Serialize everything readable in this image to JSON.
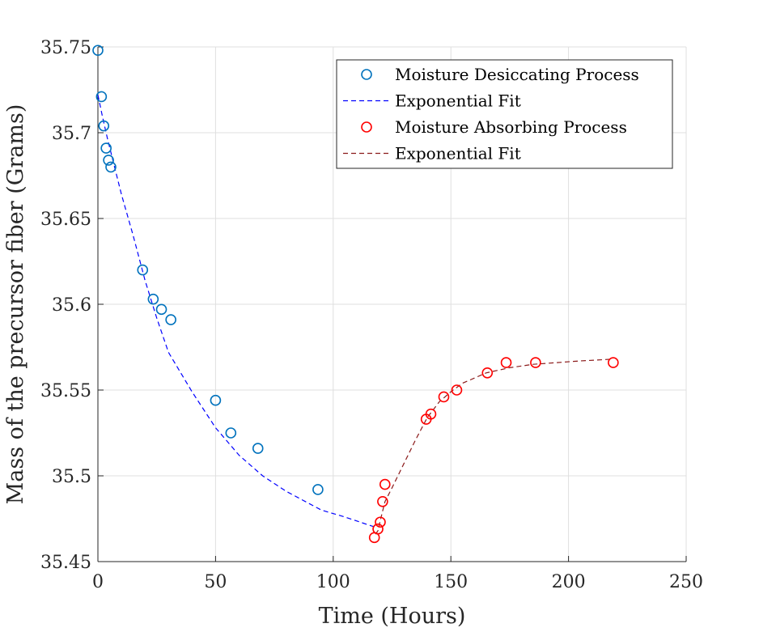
{
  "chart_data": {
    "type": "scatter",
    "xlabel": "Time (Hours)",
    "ylabel": "Mass of the precursor fiber (Grams)",
    "xlim": [
      0,
      250
    ],
    "ylim": [
      35.45,
      35.75
    ],
    "xticks": [
      0,
      50,
      100,
      150,
      200,
      250
    ],
    "xtick_labels": [
      "0",
      "50",
      "100",
      "150",
      "200",
      "250"
    ],
    "yticks": [
      35.45,
      35.5,
      35.55,
      35.6,
      35.65,
      35.7,
      35.75
    ],
    "ytick_labels": [
      "35.45",
      "35.5",
      "35.55",
      "35.6",
      "35.65",
      "35.7",
      "35.75"
    ],
    "grid": true,
    "legend_position": "top-right",
    "series": [
      {
        "name": "Moisture Desiccating Process",
        "kind": "markers",
        "marker": "circle-open",
        "color": "#0072BD",
        "x": [
          0,
          1.5,
          2.5,
          3.5,
          4.5,
          5.5,
          19,
          23.5,
          27,
          31,
          50,
          56.5,
          68,
          93.5
        ],
        "y": [
          35.748,
          35.721,
          35.704,
          35.691,
          35.684,
          35.68,
          35.62,
          35.603,
          35.597,
          35.591,
          35.544,
          35.525,
          35.516,
          35.492
        ]
      },
      {
        "name": "Exponential Fit",
        "kind": "dashed-line",
        "color": "#0000FF",
        "x": [
          0,
          2,
          4,
          6,
          10,
          15,
          20,
          25,
          30,
          40,
          50,
          60,
          70,
          80,
          95,
          105,
          118
        ],
        "y": [
          35.722,
          35.709,
          35.697,
          35.686,
          35.664,
          35.64,
          35.614,
          35.592,
          35.572,
          35.549,
          35.528,
          35.512,
          35.5,
          35.491,
          35.48,
          35.476,
          35.47
        ]
      },
      {
        "name": "Moisture Absorbing Process",
        "kind": "markers",
        "marker": "circle-open",
        "color": "#FF0000",
        "x": [
          117.5,
          119,
          120,
          121,
          122,
          139.5,
          141.5,
          147,
          152.5,
          165.5,
          173.5,
          186,
          219
        ],
        "y": [
          35.464,
          35.469,
          35.473,
          35.485,
          35.495,
          35.533,
          35.536,
          35.546,
          35.55,
          35.56,
          35.566,
          35.566,
          35.566
        ]
      },
      {
        "name": "Exponential Fit",
        "kind": "dashed-line",
        "color": "#8B1A1A",
        "x": [
          118,
          119,
          120,
          122,
          125,
          130,
          135,
          140,
          145,
          150,
          155,
          160,
          165,
          175,
          185,
          195,
          205,
          219
        ],
        "y": [
          35.466,
          35.468,
          35.474,
          35.485,
          35.493,
          35.507,
          35.521,
          35.534,
          35.543,
          35.549,
          35.554,
          35.557,
          35.56,
          35.563,
          35.565,
          35.566,
          35.567,
          35.568
        ]
      }
    ]
  }
}
